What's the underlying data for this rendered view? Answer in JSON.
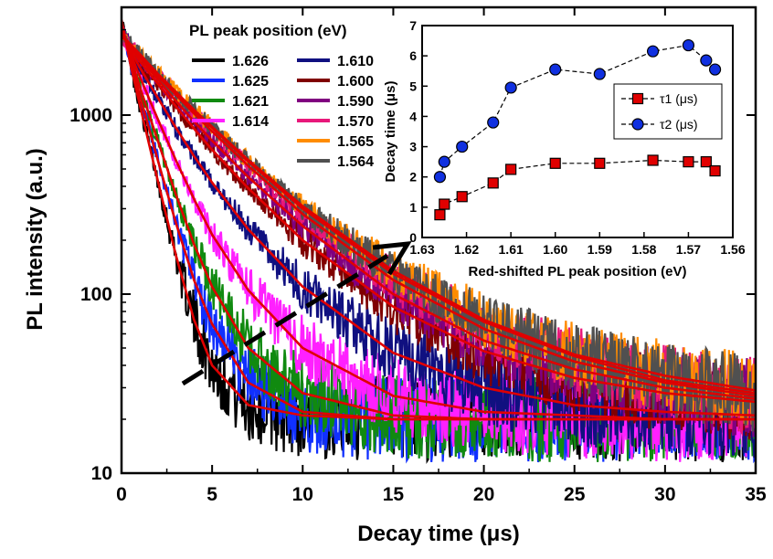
{
  "chart_data": [
    {
      "type": "line",
      "subtype": "time-resolved PL decay curves with fits",
      "xlabel": "Decay time (μs)",
      "ylabel": "PL intensity (a.u.)",
      "xlim": [
        0,
        35
      ],
      "ylim": [
        10,
        4000
      ],
      "yscale": "log",
      "x_ticks": [
        "0",
        "5",
        "10",
        "15",
        "20",
        "25",
        "30",
        "35"
      ],
      "y_ticks": [
        "10",
        "100",
        "1000"
      ],
      "y_tick_values": [
        10,
        100,
        1000
      ],
      "legend_title": "PL peak position (eV)",
      "legend_placement": "top-center",
      "fit_color": "#e00000",
      "x": [
        0,
        0.5,
        1,
        2,
        3,
        4,
        5,
        7,
        10,
        15,
        20,
        25,
        30,
        35
      ],
      "series": [
        {
          "name": "1.626",
          "color": "#000000",
          "values": [
            3400,
            1900,
            1150,
            430,
            165,
            72,
            40,
            24,
            21,
            20,
            20,
            20,
            20,
            20
          ]
        },
        {
          "name": "1.625",
          "color": "#1030ff",
          "values": [
            3300,
            2000,
            1300,
            560,
            250,
            120,
            68,
            32,
            22,
            20,
            20,
            20,
            20,
            20
          ]
        },
        {
          "name": "1.621",
          "color": "#108a10",
          "values": [
            3200,
            2100,
            1450,
            720,
            360,
            190,
            110,
            50,
            28,
            21,
            20,
            20,
            20,
            20
          ]
        },
        {
          "name": "1.614",
          "color": "#ff20ff",
          "values": [
            3100,
            2200,
            1650,
            950,
            560,
            340,
            215,
            105,
            50,
            27,
            22,
            21,
            20,
            20
          ]
        },
        {
          "name": "1.610",
          "color": "#101080",
          "values": [
            3000,
            2300,
            1850,
            1250,
            850,
            590,
            420,
            230,
            110,
            47,
            30,
            24,
            22,
            21
          ]
        },
        {
          "name": "1.600",
          "color": "#800000",
          "values": [
            2900,
            2400,
            2000,
            1500,
            1120,
            840,
            640,
            390,
            200,
            85,
            48,
            34,
            28,
            25
          ]
        },
        {
          "name": "1.590",
          "color": "#800080",
          "values": [
            2850,
            2450,
            2100,
            1580,
            1200,
            920,
            720,
            450,
            240,
            100,
            55,
            38,
            30,
            26
          ]
        },
        {
          "name": "1.570",
          "color": "#e8187a",
          "values": [
            2800,
            2450,
            2150,
            1650,
            1300,
            1020,
            810,
            520,
            280,
            120,
            64,
            42,
            32,
            27
          ]
        },
        {
          "name": "1.565",
          "color": "#ff8c00",
          "values": [
            2800,
            2480,
            2200,
            1700,
            1350,
            1070,
            860,
            560,
            310,
            135,
            72,
            46,
            35,
            29
          ]
        },
        {
          "name": "1.564",
          "color": "#505050",
          "values": [
            2750,
            2470,
            2180,
            1690,
            1330,
            1060,
            850,
            550,
            300,
            130,
            70,
            45,
            33,
            28
          ]
        }
      ],
      "annotation": "dashed arrow indicating red shift"
    },
    {
      "type": "scatter",
      "placement": "inset top-right",
      "xlabel": "Red-shifted PL peak position (eV)",
      "ylabel": "Decay time (μs)",
      "xlim": [
        1.63,
        1.56
      ],
      "ylim": [
        0,
        7
      ],
      "x_ticks": [
        "1.63",
        "1.62",
        "1.61",
        "1.60",
        "1.59",
        "1.58",
        "1.57",
        "1.56"
      ],
      "y_ticks": [
        "0",
        "1",
        "2",
        "3",
        "4",
        "5",
        "6",
        "7"
      ],
      "legend_placement": "right",
      "series": [
        {
          "name": "τ1 (μs)",
          "marker": "square",
          "color": "#e00000",
          "x": [
            1.626,
            1.625,
            1.621,
            1.614,
            1.61,
            1.6,
            1.59,
            1.578,
            1.57,
            1.566,
            1.564
          ],
          "values": [
            0.75,
            1.1,
            1.35,
            1.8,
            2.25,
            2.45,
            2.45,
            2.55,
            2.5,
            2.5,
            2.2
          ]
        },
        {
          "name": "τ2 (μs)",
          "marker": "circle",
          "color": "#1030e0",
          "x": [
            1.626,
            1.625,
            1.621,
            1.614,
            1.61,
            1.6,
            1.59,
            1.578,
            1.57,
            1.566,
            1.564
          ],
          "values": [
            2.0,
            2.5,
            3.0,
            3.8,
            4.95,
            5.55,
            5.4,
            6.15,
            6.35,
            5.85,
            5.55
          ]
        }
      ]
    }
  ]
}
